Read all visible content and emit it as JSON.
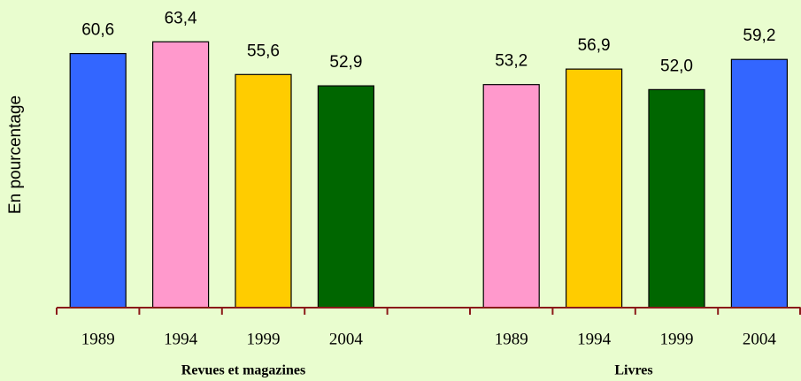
{
  "chart_data": {
    "type": "bar",
    "y_label": "En pourcentage",
    "categories": [
      "1989",
      "1994",
      "1999",
      "2004",
      null,
      "1989",
      "1994",
      "1999",
      "2004"
    ],
    "values": [
      60.6,
      63.4,
      55.6,
      52.9,
      null,
      53.2,
      56.9,
      52.0,
      59.2
    ],
    "value_labels": [
      "60,6",
      "63,4",
      "55,6",
      "52,9",
      null,
      "53,2",
      "56,9",
      "52,0",
      "59,2"
    ],
    "colors": [
      "#3366ff",
      "#ff99cc",
      "#ffcc00",
      "#006600",
      null,
      "#ff99cc",
      "#ffcc00",
      "#006600",
      "#3366ff"
    ],
    "annotations": [
      "Revues et magazines",
      "Livres"
    ],
    "ylim": [
      0,
      70
    ]
  }
}
